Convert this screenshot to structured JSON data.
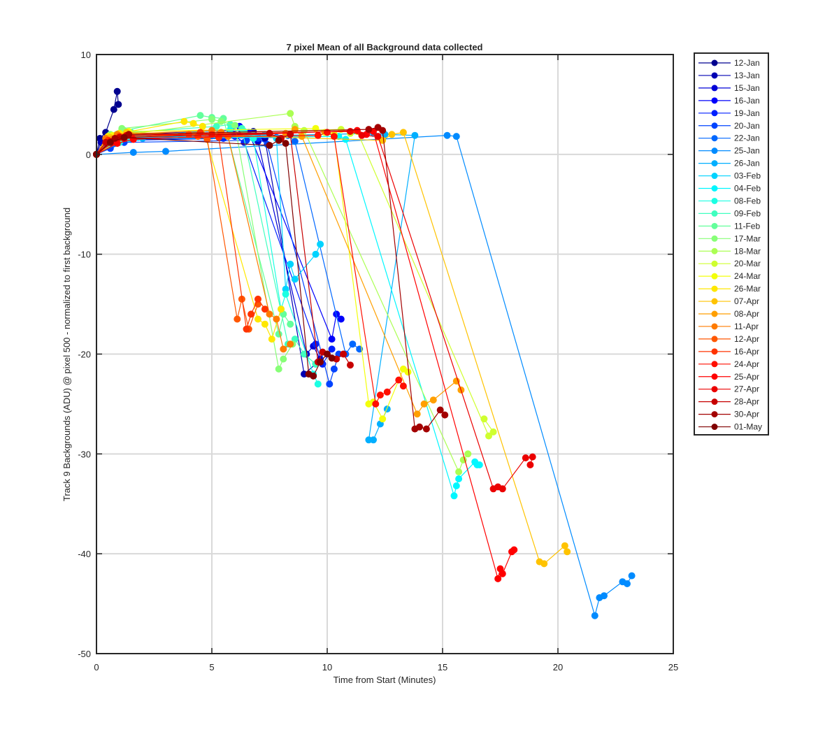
{
  "chart_data": {
    "type": "line",
    "title": "7 pixel Mean of all Background data collected",
    "xlabel": "Time from Start (Minutes)",
    "ylabel": "Track 9 Backgrounds (ADU) @ pixel 500 - normalized to first background",
    "xlim": [
      0,
      25
    ],
    "ylim": [
      -50,
      10
    ],
    "xticks": [
      0,
      5,
      10,
      15,
      20,
      25
    ],
    "yticks": [
      -50,
      -40,
      -30,
      -20,
      -10,
      0,
      10
    ],
    "grid": true,
    "legend_position": "outside-top-right",
    "colormap": "jet",
    "series": [
      {
        "name": "12-Jan",
        "color": "#00008f",
        "x": [
          0,
          0.15,
          0.4,
          0.75,
          0.9,
          0.95
        ],
        "y": [
          0,
          1.6,
          2.2,
          4.5,
          6.3,
          5.0
        ]
      },
      {
        "name": "13-Jan",
        "color": "#0000b3",
        "x": [
          0,
          0.2,
          0.5,
          0.9,
          6.3,
          6.8,
          7.3,
          9.0,
          9.5,
          9.7
        ],
        "y": [
          0,
          1.2,
          1.8,
          1.5,
          2.2,
          2.3,
          1.6,
          -22,
          -21,
          -20.5
        ]
      },
      {
        "name": "15-Jan",
        "color": "#0000d7",
        "x": [
          0,
          0.3,
          0.8,
          1.2,
          6.0,
          6.5,
          7.0,
          9.1,
          9.4,
          9.8
        ],
        "y": [
          0,
          1.0,
          1.6,
          1.8,
          2.0,
          1.9,
          1.3,
          -20,
          -19.2,
          -21
        ]
      },
      {
        "name": "16-Jan",
        "color": "#0000fb",
        "x": [
          0,
          0.5,
          1.0,
          5.8,
          6.2,
          6.6,
          10.2,
          10.4,
          10.6
        ],
        "y": [
          0,
          1.5,
          2.0,
          2.4,
          2.8,
          2.2,
          -18.5,
          -16,
          -16.5
        ]
      },
      {
        "name": "19-Jan",
        "color": "#001fff",
        "x": [
          0,
          0.4,
          1.0,
          5.5,
          6.0,
          6.4,
          9.5,
          9.8,
          10.2
        ],
        "y": [
          0,
          1.0,
          1.4,
          1.6,
          1.8,
          1.2,
          -19,
          -21,
          -19.5
        ]
      },
      {
        "name": "20-Jan",
        "color": "#0043ff",
        "x": [
          0,
          0.6,
          1.2,
          6.5,
          7.0,
          7.4,
          10.1,
          10.3,
          10.5
        ],
        "y": [
          0,
          0.6,
          1.2,
          1.4,
          1.6,
          1.0,
          -23,
          -21.5,
          -20
        ]
      },
      {
        "name": "22-Jan",
        "color": "#0067ff",
        "x": [
          0,
          0.8,
          1.5,
          7.8,
          8.3,
          8.6,
          10.8,
          11.1,
          11.4
        ],
        "y": [
          0,
          1.1,
          1.5,
          1.7,
          1.9,
          1.3,
          -20,
          -19,
          -19.5
        ]
      },
      {
        "name": "25-Jan",
        "color": "#008bff",
        "x": [
          0,
          1.6,
          3.0,
          15.2,
          15.6,
          21.6,
          21.8,
          22.0,
          22.8,
          23.0,
          23.2
        ],
        "y": [
          0,
          0.2,
          0.3,
          1.9,
          1.8,
          -46.2,
          -44.4,
          -44.2,
          -42.8,
          -43,
          -42.2
        ]
      },
      {
        "name": "26-Jan",
        "color": "#00afff",
        "x": [
          0,
          1.0,
          2.0,
          12.0,
          12.5,
          13.8,
          11.8,
          12.0,
          12.3,
          12.6
        ],
        "y": [
          0,
          1.2,
          1.6,
          2.1,
          2.0,
          1.9,
          -28.6,
          -28.6,
          -27,
          -25.5
        ]
      },
      {
        "name": "03-Feb",
        "color": "#00d3ff",
        "x": [
          0,
          0.9,
          1.8,
          6.8,
          7.3,
          7.8,
          8.2,
          8.4,
          8.6,
          9.5,
          9.7
        ],
        "y": [
          0,
          1.3,
          1.7,
          1.9,
          2.0,
          1.6,
          -13.5,
          -11,
          -12.5,
          -10,
          -9
        ]
      },
      {
        "name": "04-Feb",
        "color": "#00f7ff",
        "x": [
          0,
          0.7,
          1.4,
          10.5,
          10.8,
          15.5,
          15.6,
          15.7,
          16.4,
          16.5,
          16.6
        ],
        "y": [
          0,
          1.4,
          1.6,
          1.8,
          1.5,
          -34.2,
          -33.2,
          -32.5,
          -30.8,
          -31.1,
          -31.1
        ]
      },
      {
        "name": "08-Feb",
        "color": "#1bffe3",
        "x": [
          0,
          1.0,
          1.6,
          5.8,
          6.4,
          6.8,
          8.0,
          8.2,
          9.4,
          9.6
        ],
        "y": [
          0,
          1.2,
          1.8,
          2.5,
          2.3,
          1.6,
          -15.5,
          -14,
          -22,
          -23
        ]
      },
      {
        "name": "09-Feb",
        "color": "#3fffbf",
        "x": [
          0,
          0.8,
          1.5,
          5.2,
          5.8,
          6.3,
          8.3,
          8.6,
          9.0,
          9.5
        ],
        "y": [
          0,
          1.6,
          2.2,
          2.8,
          3.0,
          2.6,
          -19,
          -18.5,
          -20,
          -21
        ]
      },
      {
        "name": "11-Feb",
        "color": "#63ff9b",
        "x": [
          0,
          0.5,
          1.2,
          4.5,
          5.0,
          5.5,
          7.9,
          8.1,
          8.4
        ],
        "y": [
          0,
          1.8,
          2.4,
          3.9,
          3.7,
          3.6,
          -18,
          -16,
          -17
        ]
      },
      {
        "name": "17-Mar",
        "color": "#87ff77",
        "x": [
          0,
          0.6,
          1.1,
          5.0,
          5.4,
          6.0,
          7.9,
          8.1,
          8.5
        ],
        "y": [
          0,
          2.0,
          2.6,
          3.5,
          3.3,
          2.9,
          -21.5,
          -20.5,
          -19
        ]
      },
      {
        "name": "18-Mar",
        "color": "#abff53",
        "x": [
          0,
          0.7,
          1.3,
          8.4,
          8.6,
          9.0,
          15.7,
          15.9,
          16.1
        ],
        "y": [
          0,
          1.5,
          2.0,
          4.1,
          2.8,
          2.4,
          -31.8,
          -30.6,
          -30
        ]
      },
      {
        "name": "20-Mar",
        "color": "#cfff2f",
        "x": [
          0,
          0.9,
          1.5,
          10.6,
          11.0,
          11.3,
          17.0,
          17.2,
          16.8
        ],
        "y": [
          0,
          1.3,
          1.9,
          2.5,
          2.1,
          2.3,
          -28.2,
          -27.8,
          -26.5
        ]
      },
      {
        "name": "24-Mar",
        "color": "#f3ff0b",
        "x": [
          0,
          0.7,
          1.4,
          9.5,
          9.9,
          10.3,
          11.8,
          12.0,
          12.4,
          13.3,
          13.5
        ],
        "y": [
          0,
          1.9,
          2.3,
          2.6,
          2.2,
          2.0,
          -25,
          -24.8,
          -26.5,
          -21.5,
          -21.8
        ]
      },
      {
        "name": "26-Mar",
        "color": "#ffe700",
        "x": [
          0,
          0.5,
          1.0,
          3.8,
          4.2,
          4.6,
          7.0,
          7.3,
          7.6,
          8.0
        ],
        "y": [
          0,
          1.8,
          2.1,
          3.3,
          3.1,
          2.8,
          -16.5,
          -17,
          -18.5,
          -15.5
        ]
      },
      {
        "name": "07-Apr",
        "color": "#ffc300",
        "x": [
          0,
          0.6,
          1.3,
          12.4,
          12.8,
          13.3,
          19.2,
          19.4,
          20.3,
          20.4
        ],
        "y": [
          0,
          1.7,
          2.2,
          1.4,
          2.0,
          2.2,
          -40.8,
          -41,
          -39.2,
          -39.8
        ]
      },
      {
        "name": "08-Apr",
        "color": "#ff9f00",
        "x": [
          0,
          0.8,
          1.5,
          8.2,
          8.6,
          8.9,
          13.9,
          14.2,
          14.6,
          15.6,
          15.8
        ],
        "y": [
          0,
          1.5,
          1.9,
          2.1,
          2.5,
          1.8,
          -26,
          -25,
          -24.6,
          -22.7,
          -23.6
        ]
      },
      {
        "name": "11-Apr",
        "color": "#ff7b00",
        "x": [
          0,
          0.4,
          0.9,
          5.0,
          5.4,
          5.7,
          7.5,
          7.8,
          8.1,
          8.4
        ],
        "y": [
          0,
          1.6,
          2.0,
          2.4,
          2.2,
          1.8,
          -16,
          -16.5,
          -19.5,
          -19
        ]
      },
      {
        "name": "12-Apr",
        "color": "#ff5700",
        "x": [
          0,
          0.6,
          1.1,
          4.0,
          4.4,
          4.8,
          6.1,
          6.3,
          6.6,
          7.0
        ],
        "y": [
          0,
          1.3,
          1.7,
          2.0,
          1.8,
          1.5,
          -16.5,
          -14.5,
          -17.5,
          -15
        ]
      },
      {
        "name": "16-Apr",
        "color": "#ff3300",
        "x": [
          0,
          0.5,
          1.0,
          4.5,
          5.0,
          5.3,
          6.5,
          6.7,
          7.0,
          7.3
        ],
        "y": [
          0,
          1.4,
          1.8,
          2.2,
          2.0,
          1.7,
          -17.5,
          -16,
          -14.5,
          -15.5
        ]
      },
      {
        "name": "24-Apr",
        "color": "#ff0f00",
        "x": [
          0,
          0.7,
          1.2,
          9.6,
          10.0,
          10.3,
          12.1,
          12.3,
          12.6,
          13.1,
          13.3
        ],
        "y": [
          0,
          1.2,
          1.6,
          1.9,
          2.2,
          1.8,
          -25,
          -24.1,
          -23.8,
          -22.6,
          -23.2
        ]
      },
      {
        "name": "25-Apr",
        "color": "#ff0000",
        "x": [
          0,
          0.9,
          1.6,
          11.3,
          11.7,
          12.0,
          17.4,
          17.5,
          17.6,
          18.0,
          18.1
        ],
        "y": [
          0,
          1.1,
          1.5,
          2.4,
          2.0,
          2.3,
          -42.5,
          -41.5,
          -42,
          -39.8,
          -39.6
        ]
      },
      {
        "name": "27-Apr",
        "color": "#eb0000",
        "x": [
          0,
          0.6,
          1.3,
          11.0,
          11.5,
          12.2,
          17.2,
          17.4,
          17.6,
          18.6,
          18.9,
          18.8
        ],
        "y": [
          0,
          1.3,
          1.9,
          2.3,
          1.9,
          1.8,
          -33.5,
          -33.3,
          -33.5,
          -30.4,
          -30.3,
          -31.1
        ]
      },
      {
        "name": "28-Apr",
        "color": "#c70000",
        "x": [
          0,
          0.4,
          1.0,
          7.5,
          8.0,
          8.4,
          9.6,
          9.8,
          10.4,
          10.7,
          11.0
        ],
        "y": [
          0,
          1.2,
          1.7,
          2.1,
          1.6,
          2.0,
          -20.8,
          -19.8,
          -20.5,
          -20,
          -21.1
        ]
      },
      {
        "name": "30-Apr",
        "color": "#a30000",
        "x": [
          0,
          0.8,
          1.4,
          11.8,
          12.2,
          12.4,
          13.8,
          14.0,
          14.3,
          14.9,
          15.1
        ],
        "y": [
          0,
          1.6,
          2.0,
          2.5,
          2.7,
          2.4,
          -27.5,
          -27.3,
          -27.5,
          -25.6,
          -26.1
        ]
      },
      {
        "name": "01-May",
        "color": "#800000",
        "x": [
          0,
          0.6,
          1.2,
          7.5,
          7.9,
          8.2,
          9.2,
          9.4,
          9.7,
          10.0,
          10.2
        ],
        "y": [
          0,
          1.2,
          1.7,
          0.9,
          1.4,
          1.1,
          -22,
          -22.2,
          -20.8,
          -20,
          -20.4
        ]
      }
    ]
  }
}
